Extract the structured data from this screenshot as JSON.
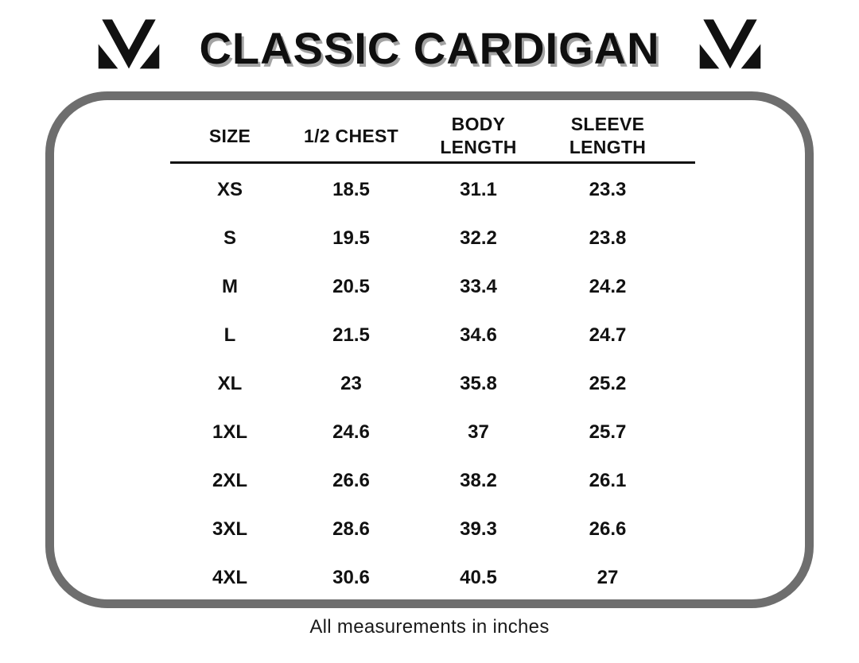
{
  "header": {
    "title": "CLASSIC CARDIGAN",
    "logo_icon": "brand-m-logo"
  },
  "table": {
    "header_lines": [
      "SIZE",
      "1/2 CHEST",
      "BODY\nLENGTH",
      "SLEEVE\nLENGTH"
    ]
  },
  "footer": {
    "note": "All measurements in inches"
  },
  "colors": {
    "background": "#ffffff",
    "text": "#111111",
    "frame_border": "#6e6e6e",
    "title_shadow": "#a3a3a3"
  },
  "chart_data": {
    "type": "table",
    "title": "CLASSIC CARDIGAN",
    "columns": [
      "SIZE",
      "1/2 CHEST",
      "BODY LENGTH",
      "SLEEVE LENGTH"
    ],
    "rows": [
      [
        "XS",
        18.5,
        31.1,
        23.3
      ],
      [
        "S",
        19.5,
        32.2,
        23.8
      ],
      [
        "M",
        20.5,
        33.4,
        24.2
      ],
      [
        "L",
        21.5,
        34.6,
        24.7
      ],
      [
        "XL",
        23,
        35.8,
        25.2
      ],
      [
        "1XL",
        24.6,
        37,
        25.7
      ],
      [
        "2XL",
        26.6,
        38.2,
        26.1
      ],
      [
        "3XL",
        28.6,
        39.3,
        26.6
      ],
      [
        "4XL",
        30.6,
        40.5,
        27
      ]
    ],
    "units_note": "All measurements in inches"
  }
}
